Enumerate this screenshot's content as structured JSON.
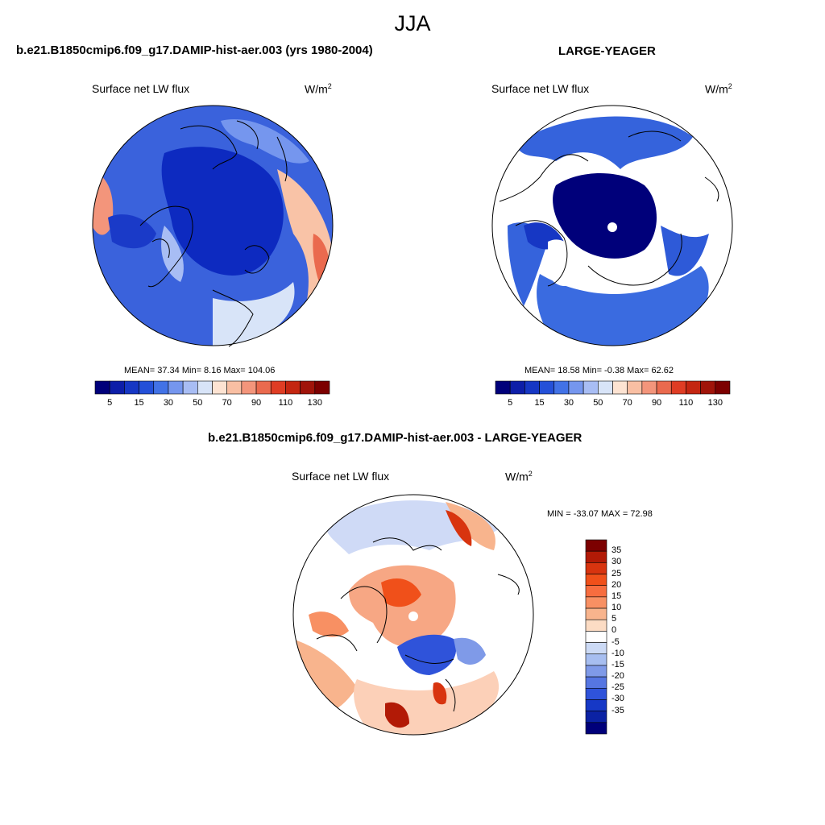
{
  "main_title": "JJA",
  "panel_left": {
    "title": "b.e21.B1850cmip6.f09_g17.DAMIP-hist-aer.003 (yrs 1980-2004)",
    "variable": "Surface net LW flux",
    "units_base": "W/m",
    "units_exp": "2",
    "stats": "MEAN=  37.34  Min=   8.16  Max= 104.06"
  },
  "panel_right": {
    "title": "LARGE-YEAGER",
    "variable": "Surface net LW flux",
    "units_base": "W/m",
    "units_exp": "2",
    "stats": "MEAN=  18.58  Min=  -0.38  Max=  62.62"
  },
  "panel_diff": {
    "title": "b.e21.B1850cmip6.f09_g17.DAMIP-hist-aer.003 - LARGE-YEAGER",
    "variable": "Surface net LW flux",
    "units_base": "W/m",
    "units_exp": "2",
    "minmax": "MIN = -33.07 MAX =  72.98"
  },
  "abs_colorbar": {
    "colors": [
      "#00007a",
      "#0d1ea8",
      "#1637c4",
      "#2450d8",
      "#4272e6",
      "#7596ee",
      "#a8bdf4",
      "#d8e4f8",
      "#fde3d2",
      "#f9bfa3",
      "#f3957b",
      "#ea6a4e",
      "#df3d24",
      "#c42611",
      "#a0140a",
      "#7c0000"
    ],
    "ticks": [
      "5",
      "15",
      "30",
      "50",
      "70",
      "90",
      "110",
      "130"
    ]
  },
  "diff_colorbar": {
    "colors": [
      "#7c0000",
      "#b21a06",
      "#d8340f",
      "#f0501a",
      "#f76d3f",
      "#f89063",
      "#f8b48d",
      "#fcdcc4",
      "#ffffff",
      "#ccdaf5",
      "#a7bef0",
      "#7f9ae8",
      "#5676e2",
      "#2f53da",
      "#1638c6",
      "#0b22a4",
      "#00007a"
    ],
    "ticks": [
      "35",
      "30",
      "25",
      "20",
      "15",
      "10",
      "5",
      "0",
      "-5",
      "-10",
      "-15",
      "-20",
      "-25",
      "-30",
      "-35"
    ]
  },
  "map_colors": {
    "ocean_left": "#2f56d8",
    "ocean_right": "#3563dc",
    "deep_blue": "#0a1fb0",
    "warm": "#f39a7c",
    "diff_warm": "#f7a784",
    "diff_light": "#fcd9c4",
    "diff_cool": "#9ab4ee"
  }
}
